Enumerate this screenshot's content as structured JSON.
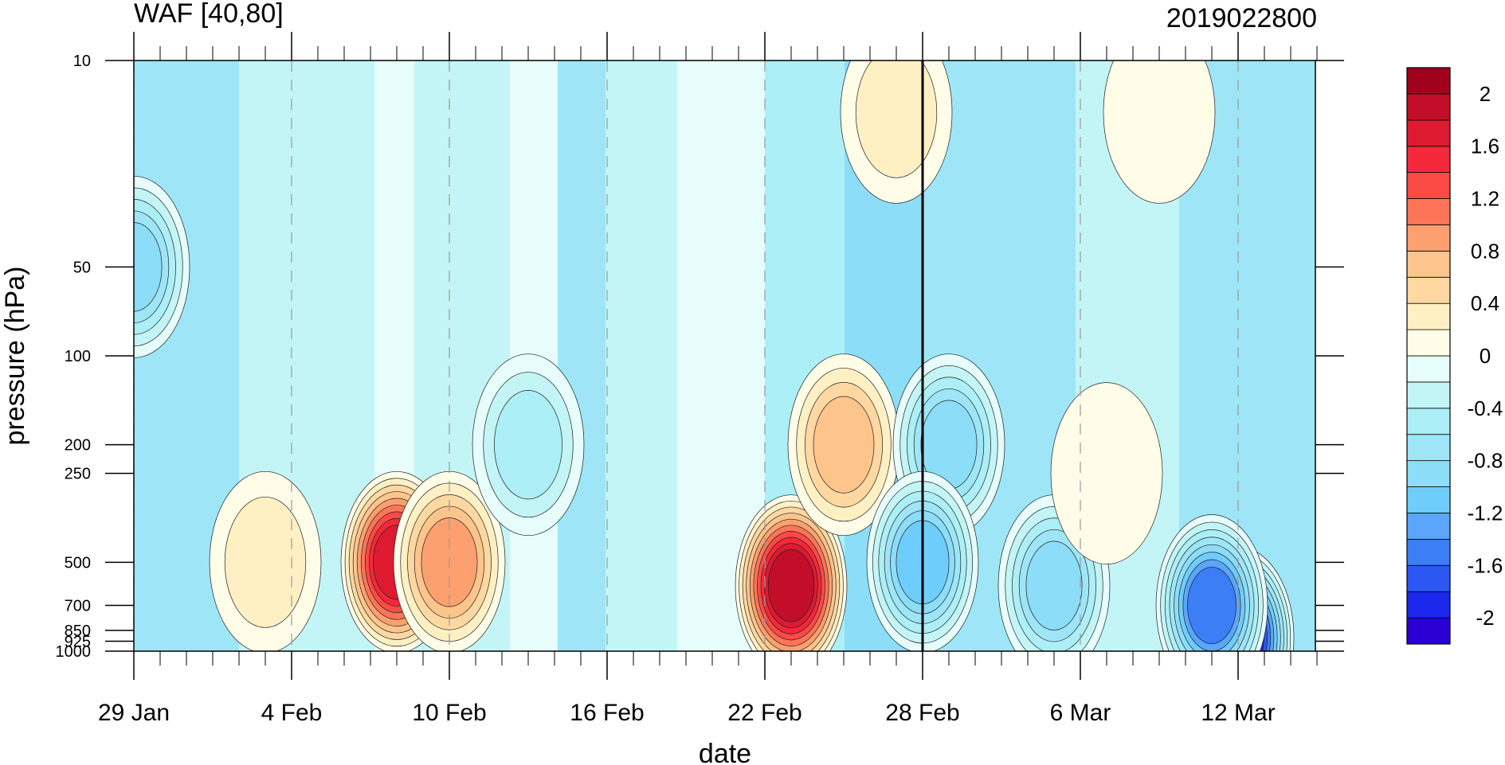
{
  "chart_data": {
    "type": "heatmap",
    "subtype": "filled-contour",
    "title_left": "WAF [40,80]",
    "title_right": "2019022800",
    "xlabel": "date",
    "ylabel": "pressure (hPa)",
    "x_ticks": [
      "29 Jan",
      "4 Feb",
      "10 Feb",
      "16 Feb",
      "22 Feb",
      "28 Feb",
      "6 Mar",
      "12 Mar"
    ],
    "x_start": "29 Jan",
    "x_end": "15 Mar",
    "y_ticks": [
      10,
      50,
      100,
      200,
      250,
      500,
      700,
      850,
      925,
      1000
    ],
    "y_scale": "log",
    "y_inverted": true,
    "marker_date": "28 Feb",
    "colorbar": {
      "levels": [
        -2.2,
        -2.0,
        -1.8,
        -1.6,
        -1.4,
        -1.2,
        -1.0,
        -0.8,
        -0.6,
        -0.4,
        -0.2,
        0,
        0.2,
        0.4,
        0.6,
        0.8,
        1.0,
        1.2,
        1.4,
        1.6,
        1.8,
        2.0,
        2.2
      ],
      "labels": [
        "2",
        "1.6",
        "1.2",
        "0.8",
        "0.4",
        "0",
        "-0.4",
        "-0.8",
        "-1.2",
        "-1.6",
        "-2"
      ],
      "colors": [
        "#2A00D5",
        "#1C28EC",
        "#2B58F2",
        "#3C7EF6",
        "#59A6FA",
        "#6FCDFB",
        "#8CDDF8",
        "#9EE6F7",
        "#ACEFF6",
        "#C3F5F6",
        "#E6FDFC",
        "#FFFCE8",
        "#FFF0C4",
        "#FED7A1",
        "#FDC58C",
        "#FDA06F",
        "#FD7558",
        "#FC4A44",
        "#F4283A",
        "#DE1A30",
        "#C20E28",
        "#A0021E"
      ]
    },
    "series": [
      {
        "date": "8 Feb",
        "pressure": 500,
        "value": 1.8
      },
      {
        "date": "10 Feb",
        "pressure": 500,
        "value": 1.0
      },
      {
        "date": "23 Feb",
        "pressure": 600,
        "value": 2.0
      },
      {
        "date": "25 Feb",
        "pressure": 200,
        "value": 0.8
      },
      {
        "date": "13 Feb",
        "pressure": 200,
        "value": -0.6
      },
      {
        "date": "29 Jan",
        "pressure": 50,
        "value": -1.0
      },
      {
        "date": "1 Mar",
        "pressure": 200,
        "value": -1.0
      },
      {
        "date": "28 Feb",
        "pressure": 500,
        "value": -1.2
      },
      {
        "date": "5 Mar",
        "pressure": 600,
        "value": -1.0
      },
      {
        "date": "12 Mar",
        "pressure": 900,
        "value": -2.2
      },
      {
        "date": "11 Mar",
        "pressure": 700,
        "value": -1.6
      },
      {
        "date": "7 Mar",
        "pressure": 250,
        "value": 0.0
      },
      {
        "date": "27 Feb",
        "pressure": 15,
        "value": 0.4
      },
      {
        "date": "9 Mar",
        "pressure": 15,
        "value": 0.0
      },
      {
        "date": "3 Feb",
        "pressure": 500,
        "value": 0.4
      }
    ]
  }
}
